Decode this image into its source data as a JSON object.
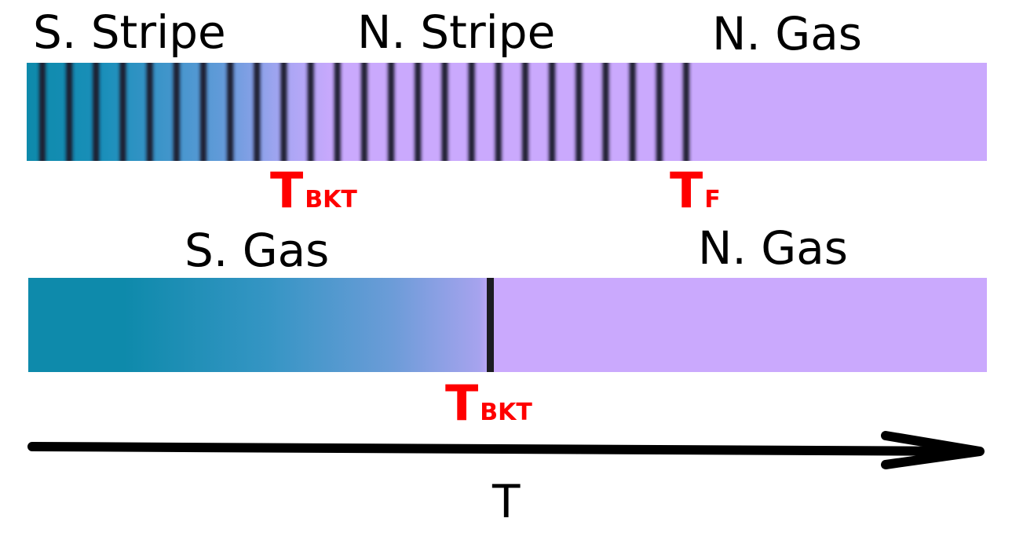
{
  "top_diagram": {
    "labels": {
      "s_stripe": "S. Stripe",
      "n_stripe": "N. Stripe",
      "n_gas": "N. Gas"
    },
    "markers": {
      "t_bkt": {
        "main": "T",
        "sub": "BKT"
      },
      "t_f": {
        "main": "T",
        "sub": "F"
      }
    }
  },
  "bottom_diagram": {
    "labels": {
      "s_gas": "S. Gas",
      "n_gas": "N. Gas"
    },
    "markers": {
      "t_bkt": {
        "main": "T",
        "sub": "BKT"
      }
    }
  },
  "axis": {
    "label": "T"
  },
  "colors": {
    "superfluid": "#0e8aab",
    "normal": "#caa9fd",
    "marker": "#ff0000",
    "stripe": "#1a1a2e",
    "axis": "#000000"
  }
}
